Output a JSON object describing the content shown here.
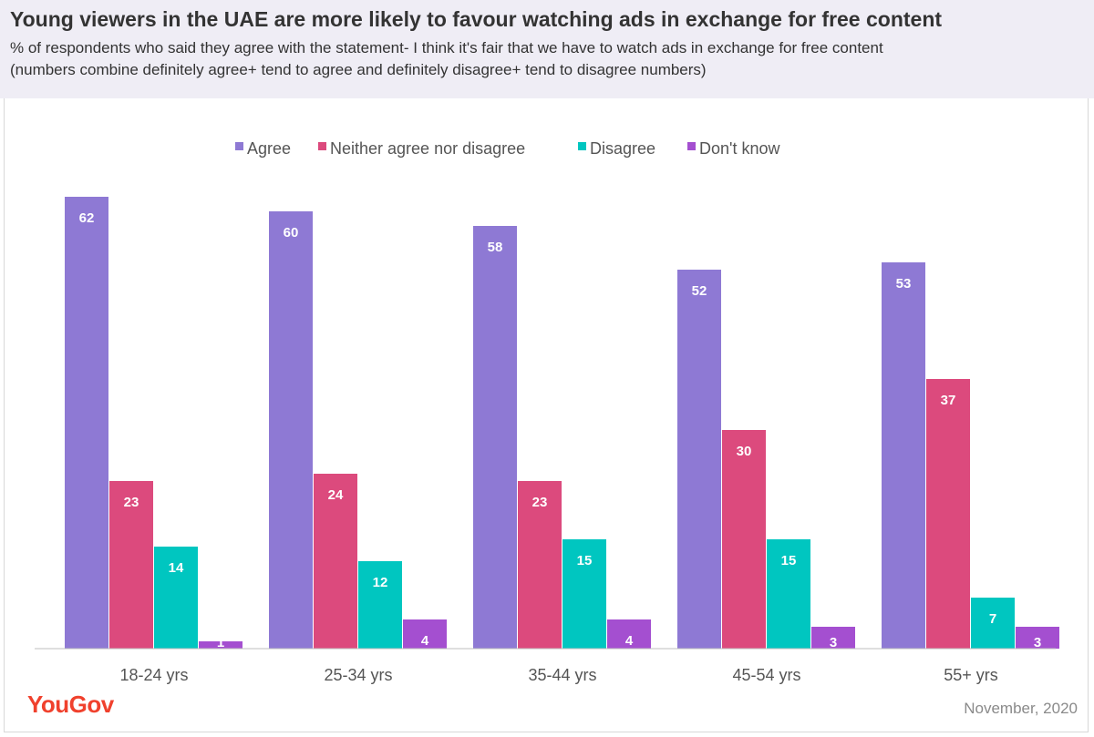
{
  "header": {
    "title": "Young viewers in the UAE are more likely to favour watching ads in exchange for free content",
    "subtitle_line1": "% of respondents who said they agree with the statement- I think it's fair that we have to watch ads in exchange for free content",
    "subtitle_line2": "(numbers combine definitely agree+ tend to agree and definitely disagree+ tend to disagree numbers)"
  },
  "footer": {
    "logo": "YouGov",
    "date": "November, 2020"
  },
  "chart_data": {
    "type": "bar",
    "categories": [
      "18-24 yrs",
      "25-34 yrs",
      "35-44 yrs",
      "45-54 yrs",
      "55+ yrs"
    ],
    "series": [
      {
        "name": "Agree",
        "color": "#8e79d4",
        "values": [
          62,
          60,
          58,
          52,
          53
        ]
      },
      {
        "name": "Neither agree nor disagree",
        "color": "#dc4a7d",
        "values": [
          23,
          24,
          23,
          30,
          37
        ]
      },
      {
        "name": "Disagree",
        "color": "#00c6c0",
        "values": [
          14,
          12,
          15,
          15,
          7
        ]
      },
      {
        "name": "Don't know",
        "color": "#a44fd0",
        "values": [
          1,
          4,
          4,
          3,
          3
        ]
      }
    ],
    "ylim": [
      0,
      62
    ],
    "grid": false,
    "legend_position": "top-center",
    "data_labels": true
  }
}
